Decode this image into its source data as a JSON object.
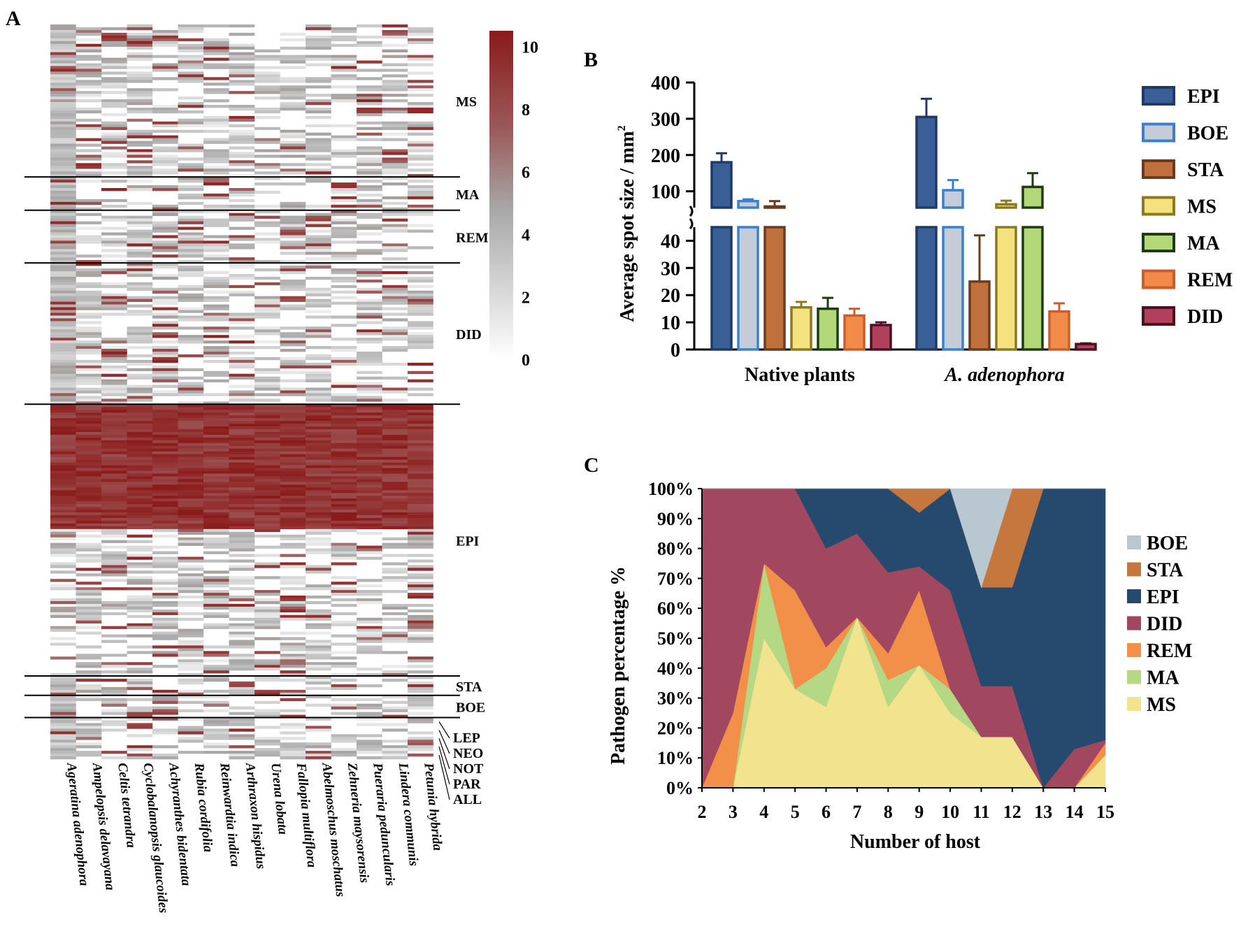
{
  "panels": {
    "a": "A",
    "b": "B",
    "c": "C"
  },
  "chart_data": [
    {
      "type": "heatmap",
      "panel": "A",
      "title": "",
      "columns": [
        "Ageratina adenophora",
        "Ampelopsis delavayana",
        "Celtis tetrandra",
        "Cyclobalanopsis glaucoides",
        "Achyranthes bidentata",
        "Rubia cordifolia",
        "Reinwardtia indica",
        "Arthraxon hispidus",
        "Urena lobata",
        "Fallopia multiflora",
        "Abelmoschus moschatus",
        "Zehneria maysorensis",
        "Pueraria peduncularis",
        "Lindera communis",
        "Petunia hybrida"
      ],
      "groups": [
        {
          "label": "MS",
          "rows": 55
        },
        {
          "label": "MA",
          "rows": 12
        },
        {
          "label": "REM",
          "rows": 19
        },
        {
          "label": "DID",
          "rows": 51
        },
        {
          "label": "EPI",
          "rows": 98
        },
        {
          "label": "STA",
          "rows": 7
        },
        {
          "label": "BOE",
          "rows": 8
        },
        {
          "label": "LEP",
          "rows": 3
        },
        {
          "label": "NEO",
          "rows": 3
        },
        {
          "label": "NOT",
          "rows": 3
        },
        {
          "label": "PAR",
          "rows": 3
        },
        {
          "label": "ALL",
          "rows": 3
        }
      ],
      "colorbar": {
        "min": 0,
        "max": 10.5,
        "ticks": [
          "0",
          "2",
          "4",
          "6",
          "8",
          "10"
        ],
        "low_color": "#ffffff",
        "mid_color": "#aaaaaa",
        "high_color": "#8b1a1a"
      },
      "note": "Cell values estimated visually; white = 0, grey ~2-5, dark red ~8-10."
    },
    {
      "type": "bar",
      "panel": "B",
      "ylabel": "Average spot size / mm",
      "ylabel_sup": "2",
      "categories": [
        "Native plants",
        "A. adenophora"
      ],
      "y_axis_break": [
        45,
        55
      ],
      "ylim": [
        0,
        400
      ],
      "yticks_lower": [
        "0",
        "10",
        "20",
        "30",
        "40"
      ],
      "yticks_upper": [
        "100",
        "200",
        "300",
        "400"
      ],
      "series": [
        {
          "name": "EPI",
          "fill": "#3a5f97",
          "edge": "#1f3a66",
          "values": [
            180,
            305
          ],
          "errors": [
            25,
            50
          ]
        },
        {
          "name": "BOE",
          "fill": "#c5ccd8",
          "edge": "#3b7fd1",
          "values": [
            73,
            103
          ],
          "errors": [
            5,
            28
          ]
        },
        {
          "name": "STA",
          "fill": "#c0703c",
          "edge": "#6b3b1e",
          "values": [
            58,
            25
          ],
          "errors": [
            15,
            17
          ]
        },
        {
          "name": "MS",
          "fill": "#f5e27e",
          "edge": "#8a7a22",
          "values": [
            15.5,
            64
          ],
          "errors": [
            2,
            10
          ]
        },
        {
          "name": "MA",
          "fill": "#b3d87a",
          "edge": "#1c3d12",
          "values": [
            15,
            112
          ],
          "errors": [
            4,
            38
          ]
        },
        {
          "name": "REM",
          "fill": "#f28b4a",
          "edge": "#c95e2c",
          "values": [
            12.5,
            14
          ],
          "errors": [
            2.5,
            3
          ]
        },
        {
          "name": "DID",
          "fill": "#b0405c",
          "edge": "#4d0f22",
          "values": [
            9,
            2
          ],
          "errors": [
            1,
            0.3
          ]
        }
      ]
    },
    {
      "type": "area",
      "panel": "C",
      "xlabel": "Number of host",
      "ylabel": "Pathogen percentage %",
      "x": [
        2,
        3,
        4,
        5,
        6,
        7,
        8,
        9,
        10,
        11,
        12,
        13,
        14,
        15
      ],
      "yticks": [
        "0%",
        "10%",
        "20%",
        "30%",
        "40%",
        "50%",
        "60%",
        "70%",
        "80%",
        "90%",
        "100%"
      ],
      "ylim": [
        0,
        100
      ],
      "stack_order_bottom_to_top": [
        "MS",
        "MA",
        "REM",
        "DID",
        "EPI",
        "STA",
        "BOE"
      ],
      "legend_order": [
        "BOE",
        "STA",
        "EPI",
        "DID",
        "REM",
        "MA",
        "MS"
      ],
      "series": [
        {
          "name": "MS",
          "color": "#f2e48e",
          "values": [
            0,
            0,
            50,
            33,
            27,
            57,
            27,
            41,
            25,
            17,
            17,
            0,
            0,
            11
          ]
        },
        {
          "name": "MA",
          "color": "#b5d885",
          "values": [
            0,
            0,
            25,
            0,
            13,
            0,
            9,
            0,
            8,
            0,
            0,
            0,
            0,
            0
          ]
        },
        {
          "name": "REM",
          "color": "#f28f49",
          "values": [
            0,
            25,
            0,
            33,
            7,
            0,
            9,
            25,
            0,
            0,
            0,
            0,
            0,
            4
          ]
        },
        {
          "name": "DID",
          "color": "#a14860",
          "values": [
            100,
            75,
            25,
            34,
            33,
            28,
            27,
            8,
            33,
            17,
            17,
            0,
            13,
            1
          ]
        },
        {
          "name": "EPI",
          "color": "#254a6e",
          "values": [
            0,
            0,
            0,
            0,
            20,
            15,
            28,
            18,
            34,
            33,
            33,
            100,
            87,
            84
          ]
        },
        {
          "name": "STA",
          "color": "#c6773e",
          "values": [
            0,
            0,
            0,
            0,
            0,
            0,
            0,
            8,
            0,
            0,
            33,
            0,
            0,
            0
          ]
        },
        {
          "name": "BOE",
          "color": "#b9c7d1",
          "values": [
            0,
            0,
            0,
            0,
            0,
            0,
            0,
            0,
            0,
            33,
            0,
            0,
            0,
            0
          ]
        }
      ]
    }
  ]
}
